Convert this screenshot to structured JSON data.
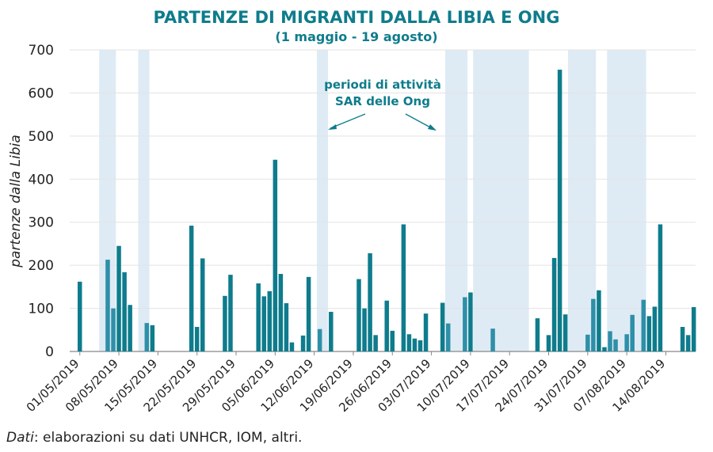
{
  "chart_data": {
    "type": "bar",
    "title": "PARTENZE DI MIGRANTI DALLA LIBIA E ONG",
    "subtitle": "(1 maggio - 19 agosto)",
    "ylabel": "partenze dalla Libia",
    "xlabel": "",
    "ylim": [
      0,
      700
    ],
    "yticks": [
      0,
      100,
      200,
      300,
      400,
      500,
      600,
      700
    ],
    "start_date": "2019-05-01",
    "end_date": "2019-08-19",
    "xtick_labels": [
      "01/05/2019",
      "08/05/2019",
      "15/05/2019",
      "22/05/2019",
      "29/05/2019",
      "05/06/2019",
      "12/06/2019",
      "19/06/2019",
      "26/06/2019",
      "03/07/2019",
      "10/07/2019",
      "17/07/2019",
      "24/07/2019",
      "31/07/2019",
      "07/08/2019",
      "14/08/2019"
    ],
    "grid": true,
    "colors": {
      "bar": "#0e7c8c",
      "bar_sar": "#2e8fa8",
      "sar_band": "#deebf5",
      "title": "#0e7c8c"
    },
    "annotation": [
      "periodi di attività",
      "SAR delle Ong"
    ],
    "sar_periods": [
      [
        "2019-05-05",
        "2019-05-07"
      ],
      [
        "2019-05-12",
        "2019-05-13"
      ],
      [
        "2019-06-13",
        "2019-06-14"
      ],
      [
        "2019-07-06",
        "2019-07-09"
      ],
      [
        "2019-07-11",
        "2019-07-20"
      ],
      [
        "2019-07-28",
        "2019-08-01"
      ],
      [
        "2019-08-04",
        "2019-08-10"
      ]
    ],
    "bars": [
      {
        "date": "2019-05-01",
        "value": 162
      },
      {
        "date": "2019-05-06",
        "value": 213
      },
      {
        "date": "2019-05-07",
        "value": 100
      },
      {
        "date": "2019-05-08",
        "value": 245
      },
      {
        "date": "2019-05-09",
        "value": 184
      },
      {
        "date": "2019-05-10",
        "value": 108
      },
      {
        "date": "2019-05-13",
        "value": 66
      },
      {
        "date": "2019-05-14",
        "value": 61
      },
      {
        "date": "2019-05-21",
        "value": 292
      },
      {
        "date": "2019-05-22",
        "value": 57
      },
      {
        "date": "2019-05-23",
        "value": 216
      },
      {
        "date": "2019-05-27",
        "value": 129
      },
      {
        "date": "2019-05-28",
        "value": 178
      },
      {
        "date": "2019-06-02",
        "value": 158
      },
      {
        "date": "2019-06-03",
        "value": 128
      },
      {
        "date": "2019-06-04",
        "value": 140
      },
      {
        "date": "2019-06-05",
        "value": 445
      },
      {
        "date": "2019-06-06",
        "value": 180
      },
      {
        "date": "2019-06-07",
        "value": 112
      },
      {
        "date": "2019-06-08",
        "value": 21
      },
      {
        "date": "2019-06-10",
        "value": 37
      },
      {
        "date": "2019-06-11",
        "value": 173
      },
      {
        "date": "2019-06-13",
        "value": 52
      },
      {
        "date": "2019-06-15",
        "value": 92
      },
      {
        "date": "2019-06-20",
        "value": 168
      },
      {
        "date": "2019-06-21",
        "value": 100
      },
      {
        "date": "2019-06-22",
        "value": 228
      },
      {
        "date": "2019-06-23",
        "value": 38
      },
      {
        "date": "2019-06-25",
        "value": 118
      },
      {
        "date": "2019-06-26",
        "value": 48
      },
      {
        "date": "2019-06-28",
        "value": 295
      },
      {
        "date": "2019-06-29",
        "value": 40
      },
      {
        "date": "2019-06-30",
        "value": 30
      },
      {
        "date": "2019-07-01",
        "value": 26
      },
      {
        "date": "2019-07-02",
        "value": 88
      },
      {
        "date": "2019-07-05",
        "value": 113
      },
      {
        "date": "2019-07-06",
        "value": 65
      },
      {
        "date": "2019-07-09",
        "value": 126
      },
      {
        "date": "2019-07-10",
        "value": 137
      },
      {
        "date": "2019-07-14",
        "value": 53
      },
      {
        "date": "2019-07-22",
        "value": 77
      },
      {
        "date": "2019-07-24",
        "value": 38
      },
      {
        "date": "2019-07-25",
        "value": 217
      },
      {
        "date": "2019-07-26",
        "value": 654
      },
      {
        "date": "2019-07-27",
        "value": 86
      },
      {
        "date": "2019-07-31",
        "value": 39
      },
      {
        "date": "2019-08-01",
        "value": 122
      },
      {
        "date": "2019-08-02",
        "value": 142
      },
      {
        "date": "2019-08-03",
        "value": 10
      },
      {
        "date": "2019-08-04",
        "value": 47
      },
      {
        "date": "2019-08-05",
        "value": 28
      },
      {
        "date": "2019-08-07",
        "value": 40
      },
      {
        "date": "2019-08-08",
        "value": 85
      },
      {
        "date": "2019-08-10",
        "value": 120
      },
      {
        "date": "2019-08-11",
        "value": 82
      },
      {
        "date": "2019-08-12",
        "value": 104
      },
      {
        "date": "2019-08-13",
        "value": 295
      },
      {
        "date": "2019-08-17",
        "value": 57
      },
      {
        "date": "2019-08-18",
        "value": 38
      },
      {
        "date": "2019-08-19",
        "value": 103
      }
    ]
  },
  "source": {
    "label": "Dati",
    "text": ": elaborazioni su dati UNHCR, IOM, altri."
  }
}
